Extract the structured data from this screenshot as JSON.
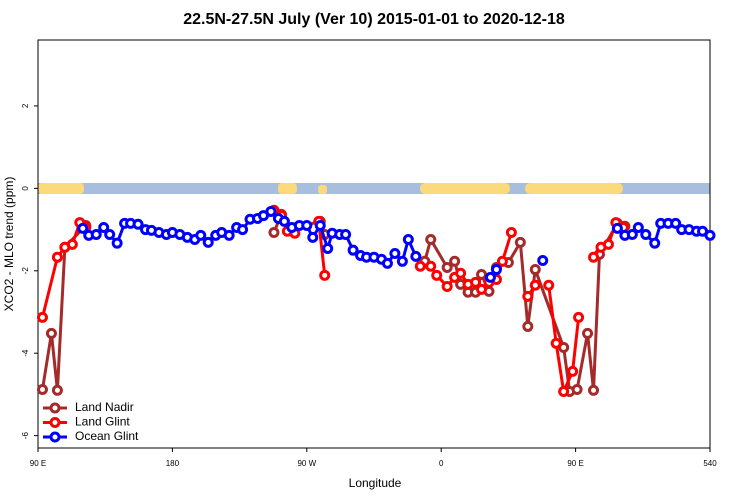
{
  "chart_data": {
    "type": "line",
    "title": "22.5N-27.5N July (Ver 10)   2015-01-01 to 2020-12-18",
    "x_label": "Longitude",
    "y_label": "XCO2 - MLO trend (ppm)",
    "xlim": [
      90,
      540
    ],
    "ylim": [
      -6.3,
      3.6
    ],
    "xticks": [
      {
        "value": 90,
        "label": "90 E"
      },
      180,
      {
        "value": 270,
        "label": "90 W"
      },
      {
        "value": 360,
        "label": "0"
      },
      {
        "value": 450,
        "label": "90 E"
      },
      540
    ],
    "yticks": [
      -6,
      -4,
      -2,
      0,
      2
    ],
    "legend": "bottom-left",
    "series": [
      {
        "name": "Land Nadir",
        "color": "#a52a2a",
        "x": [
          93,
          99,
          103,
          108,
          122,
          185,
          248,
          253,
          259,
          279,
          282,
          320,
          349,
          353,
          364,
          369,
          373,
          378,
          383,
          387,
          392,
          397,
          405,
          413,
          418,
          423,
          442,
          446,
          451,
          458,
          462,
          466,
          478,
          483
        ],
        "values": [
          -4.88,
          -3.52,
          -4.9,
          -1.43,
          -0.9,
          null,
          -1.07,
          -0.63,
          -1.0,
          -0.8,
          -1.12,
          null,
          -1.77,
          -1.24,
          -1.92,
          -1.77,
          -2.33,
          -2.52,
          -2.52,
          -2.09,
          -2.5,
          -1.92,
          -1.8,
          -1.31,
          -3.35,
          -1.97,
          -3.86,
          -4.93,
          -4.88,
          -3.52,
          -4.9,
          -1.6,
          -0.85,
          -0.92
        ]
      },
      {
        "name": "Land Glint",
        "color": "#ff0000",
        "x": [
          93,
          103,
          108,
          113,
          118,
          122,
          185,
          248,
          253,
          257,
          262,
          270,
          278,
          282,
          320,
          346,
          353,
          357,
          364,
          369,
          373,
          378,
          383,
          387,
          392,
          397,
          401,
          407,
          412,
          418,
          423,
          427,
          432,
          437,
          442,
          448,
          452,
          457,
          462,
          467,
          472,
          477,
          482
        ],
        "values": [
          -3.13,
          -1.67,
          -1.43,
          -1.36,
          -0.83,
          -0.95,
          null,
          -0.53,
          -0.66,
          -1.04,
          -1.09,
          null,
          -0.8,
          -2.11,
          null,
          -1.89,
          -1.89,
          -2.11,
          -2.38,
          -2.16,
          -2.06,
          -2.33,
          -2.28,
          -2.45,
          -2.28,
          -2.21,
          -1.77,
          -1.07,
          null,
          -2.62,
          -2.35,
          null,
          -2.35,
          -3.76,
          -4.93,
          -4.44,
          -3.13,
          null,
          -1.67,
          -1.43,
          -1.36,
          -0.83,
          -0.95
        ]
      },
      {
        "name": "Ocean Glint",
        "color": "#0000ff",
        "x": [
          120,
          124,
          129,
          134,
          138,
          143,
          148,
          152,
          157,
          162,
          166,
          171,
          176,
          180,
          185,
          190,
          195,
          199,
          204,
          209,
          213,
          218,
          223,
          227,
          232,
          237,
          241,
          246,
          251,
          255,
          260,
          265,
          270,
          274,
          279,
          284,
          287,
          292,
          296,
          301,
          306,
          310,
          315,
          320,
          324,
          329,
          334,
          338,
          343,
          370,
          393,
          397,
          410,
          428,
          450,
          478,
          483,
          488,
          492,
          497,
          503,
          507,
          512,
          517,
          521,
          526,
          531,
          535,
          540
        ],
        "values": [
          -0.97,
          -1.14,
          -1.12,
          -0.95,
          -1.12,
          -1.33,
          -0.85,
          -0.85,
          -0.87,
          -1.0,
          -1.02,
          -1.07,
          -1.12,
          -1.07,
          -1.12,
          -1.19,
          -1.24,
          -1.14,
          -1.31,
          -1.14,
          -1.07,
          -1.14,
          -0.95,
          -1.0,
          -0.75,
          -0.73,
          -0.66,
          -0.56,
          -0.73,
          -0.8,
          -0.95,
          -0.9,
          -0.9,
          -1.19,
          -0.9,
          -1.46,
          -1.09,
          -1.12,
          -1.12,
          -1.5,
          -1.63,
          -1.67,
          -1.67,
          -1.72,
          -1.82,
          -1.58,
          -1.77,
          -1.24,
          -1.65,
          null,
          -2.16,
          -1.97,
          null,
          -1.75,
          null,
          -0.97,
          -1.14,
          -1.12,
          -0.95,
          -1.12,
          -1.33,
          -0.85,
          -0.85,
          -0.85,
          -1.0,
          -1.0,
          -1.04,
          -1.04,
          -1.14
        ]
      }
    ]
  }
}
